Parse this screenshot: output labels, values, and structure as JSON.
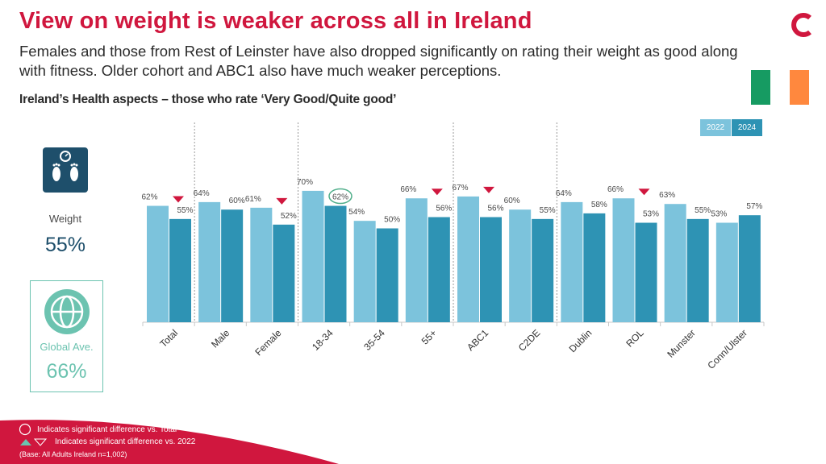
{
  "header": {
    "title": "View on weight is weaker across all in Ireland",
    "subtitle": "Females and those from Rest of Leinster have also dropped significantly on rating their weight as good along with fitness. Older cohort and ABC1 also have much weaker perceptions.",
    "section_title": "Ireland’s Health aspects – those who rate ‘Very Good/Quite good’"
  },
  "colors": {
    "brand_red": "#d0173e",
    "bar_2022": "#7cc3dc",
    "bar_2024": "#2e93b4",
    "flag_green": "#169b62",
    "flag_orange": "#ff883e",
    "circle_green": "#4fae8a"
  },
  "sidebar": {
    "metric_icon": "scale-icon",
    "metric_label": "Weight",
    "metric_value": "55%",
    "global_icon": "globe-icon",
    "global_label": "Global Ave.",
    "global_value": "66%"
  },
  "chart_data": {
    "type": "bar",
    "title": "Ireland’s Health aspects – those who rate ‘Very Good/Quite good’",
    "xlabel": "",
    "ylabel": "",
    "ylim": [
      0,
      100
    ],
    "grid": false,
    "legend": "top-right",
    "categories": [
      "Total",
      "Male",
      "Female",
      "18-34",
      "35-54",
      "55+",
      "ABC1",
      "C2DE",
      "Dublin",
      "ROL",
      "Munster",
      "Conn/Ulster"
    ],
    "series": [
      {
        "name": "2022",
        "values": [
          62,
          64,
          61,
          70,
          54,
          66,
          67,
          60,
          64,
          66,
          63,
          53
        ]
      },
      {
        "name": "2024",
        "values": [
          55,
          60,
          52,
          62,
          50,
          56,
          56,
          55,
          58,
          53,
          55,
          57
        ]
      }
    ],
    "sig_down_vs_2022": [
      "Total",
      "Female",
      "55+",
      "ABC1",
      "ROL"
    ],
    "sig_vs_total": [
      "18-34"
    ],
    "group_separators_after": [
      "Total",
      "Female",
      "55+",
      "C2DE"
    ]
  },
  "footer": {
    "note_circle": "Indicates significant difference vs. Total",
    "note_triangle": "Indicates significant difference vs. 2022",
    "base": "(Base: All Adults Ireland  n=1,002)"
  }
}
